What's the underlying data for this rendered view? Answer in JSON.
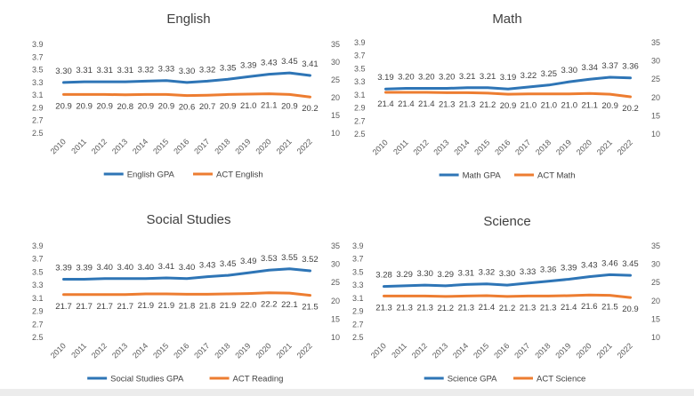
{
  "colors": {
    "gpa": "#2E75B6",
    "act": "#ED7D31",
    "text": "#404040",
    "axis": "#595959"
  },
  "chart_data": [
    {
      "type": "line",
      "title": "English",
      "categories": [
        "2010",
        "2011",
        "2012",
        "2013",
        "2014",
        "2015",
        "2016",
        "2017",
        "2018",
        "2019",
        "2020",
        "2021",
        "2022"
      ],
      "left_axis": {
        "range": [
          2.5,
          3.9
        ],
        "ticks": [
          "2.5",
          "2.7",
          "2.9",
          "3.1",
          "3.3",
          "3.5",
          "3.7",
          "3.9"
        ]
      },
      "right_axis": {
        "range": [
          10,
          35
        ],
        "ticks": [
          "10",
          "15",
          "20",
          "25",
          "30",
          "35"
        ]
      },
      "series": [
        {
          "name": "English GPA",
          "axis": "left",
          "color": "#2E75B6",
          "values": [
            3.3,
            3.31,
            3.31,
            3.31,
            3.32,
            3.33,
            3.3,
            3.32,
            3.35,
            3.39,
            3.43,
            3.45,
            3.41
          ],
          "labels": [
            "3.30",
            "3.31",
            "3.31",
            "3.31",
            "3.32",
            "3.33",
            "3.30",
            "3.32",
            "3.35",
            "3.39",
            "3.43",
            "3.45",
            "3.41"
          ]
        },
        {
          "name": "ACT English",
          "axis": "right",
          "color": "#ED7D31",
          "values": [
            20.9,
            20.9,
            20.9,
            20.8,
            20.9,
            20.9,
            20.6,
            20.7,
            20.9,
            21.0,
            21.1,
            20.9,
            20.2
          ],
          "labels": [
            "20.9",
            "20.9",
            "20.9",
            "20.8",
            "20.9",
            "20.9",
            "20.6",
            "20.7",
            "20.9",
            "21.0",
            "21.1",
            "20.9",
            "20.2"
          ]
        }
      ]
    },
    {
      "type": "line",
      "title": "Math",
      "categories": [
        "2010",
        "2011",
        "2012",
        "2013",
        "2014",
        "2015",
        "2016",
        "2017",
        "2018",
        "2019",
        "2020",
        "2021",
        "2022"
      ],
      "left_axis": {
        "range": [
          2.5,
          3.9
        ],
        "ticks": [
          "2.5",
          "2.7",
          "2.9",
          "3.1",
          "3.3",
          "3.5",
          "3.7",
          "3.9"
        ]
      },
      "right_axis": {
        "range": [
          10,
          35
        ],
        "ticks": [
          "10",
          "15",
          "20",
          "25",
          "30",
          "35"
        ]
      },
      "series": [
        {
          "name": "Math GPA",
          "axis": "left",
          "color": "#2E75B6",
          "values": [
            3.19,
            3.2,
            3.2,
            3.2,
            3.21,
            3.21,
            3.19,
            3.22,
            3.25,
            3.3,
            3.34,
            3.37,
            3.36
          ],
          "labels": [
            "3.19",
            "3.20",
            "3.20",
            "3.20",
            "3.21",
            "3.21",
            "3.19",
            "3.22",
            "3.25",
            "3.30",
            "3.34",
            "3.37",
            "3.36"
          ]
        },
        {
          "name": "ACT Math",
          "axis": "right",
          "color": "#ED7D31",
          "values": [
            21.4,
            21.4,
            21.4,
            21.3,
            21.3,
            21.2,
            20.9,
            21.0,
            21.0,
            21.0,
            21.1,
            20.9,
            20.2
          ],
          "labels": [
            "21.4",
            "21.4",
            "21.4",
            "21.3",
            "21.3",
            "21.2",
            "20.9",
            "21.0",
            "21.0",
            "21.0",
            "21.1",
            "20.9",
            "20.2"
          ]
        }
      ]
    },
    {
      "type": "line",
      "title": "Social Studies",
      "categories": [
        "2010",
        "2011",
        "2012",
        "2013",
        "2014",
        "2015",
        "2016",
        "2017",
        "2018",
        "2019",
        "2020",
        "2021",
        "2022"
      ],
      "left_axis": {
        "range": [
          2.5,
          3.9
        ],
        "ticks": [
          "2.5",
          "2.7",
          "2.9",
          "3.1",
          "3.3",
          "3.5",
          "3.7",
          "3.9"
        ]
      },
      "right_axis": {
        "range": [
          10,
          35
        ],
        "ticks": [
          "10",
          "15",
          "20",
          "25",
          "30",
          "35"
        ]
      },
      "series": [
        {
          "name": "Social Studies GPA",
          "axis": "left",
          "color": "#2E75B6",
          "values": [
            3.39,
            3.39,
            3.4,
            3.4,
            3.4,
            3.41,
            3.4,
            3.43,
            3.45,
            3.49,
            3.53,
            3.55,
            3.52
          ],
          "labels": [
            "3.39",
            "3.39",
            "3.40",
            "3.40",
            "3.40",
            "3.41",
            "3.40",
            "3.43",
            "3.45",
            "3.49",
            "3.53",
            "3.55",
            "3.52"
          ]
        },
        {
          "name": "ACT Reading",
          "axis": "right",
          "color": "#ED7D31",
          "values": [
            21.7,
            21.7,
            21.7,
            21.7,
            21.9,
            21.9,
            21.8,
            21.8,
            21.9,
            22.0,
            22.2,
            22.1,
            21.5
          ],
          "labels": [
            "21.7",
            "21.7",
            "21.7",
            "21.7",
            "21.9",
            "21.9",
            "21.8",
            "21.8",
            "21.9",
            "22.0",
            "22.2",
            "22.1",
            "21.5"
          ]
        }
      ]
    },
    {
      "type": "line",
      "title": "Science",
      "categories": [
        "2010",
        "2011",
        "2012",
        "2013",
        "2014",
        "2015",
        "2016",
        "2017",
        "2018",
        "2019",
        "2020",
        "2021",
        "2022"
      ],
      "left_axis": {
        "range": [
          2.5,
          3.9
        ],
        "ticks": [
          "2.5",
          "2.7",
          "2.9",
          "3.1",
          "3.3",
          "3.5",
          "3.7",
          "3.9"
        ]
      },
      "right_axis": {
        "range": [
          10,
          35
        ],
        "ticks": [
          "10",
          "15",
          "20",
          "25",
          "30",
          "35"
        ]
      },
      "series": [
        {
          "name": "Science GPA",
          "axis": "left",
          "color": "#2E75B6",
          "values": [
            3.28,
            3.29,
            3.3,
            3.29,
            3.31,
            3.32,
            3.3,
            3.33,
            3.36,
            3.39,
            3.43,
            3.46,
            3.45
          ],
          "labels": [
            "3.28",
            "3.29",
            "3.30",
            "3.29",
            "3.31",
            "3.32",
            "3.30",
            "3.33",
            "3.36",
            "3.39",
            "3.43",
            "3.46",
            "3.45"
          ]
        },
        {
          "name": "ACT Science",
          "axis": "right",
          "color": "#ED7D31",
          "values": [
            21.3,
            21.3,
            21.3,
            21.2,
            21.3,
            21.4,
            21.2,
            21.3,
            21.3,
            21.4,
            21.6,
            21.5,
            20.9
          ],
          "labels": [
            "21.3",
            "21.3",
            "21.3",
            "21.2",
            "21.3",
            "21.4",
            "21.2",
            "21.3",
            "21.3",
            "21.4",
            "21.6",
            "21.5",
            "20.9"
          ]
        }
      ]
    }
  ]
}
